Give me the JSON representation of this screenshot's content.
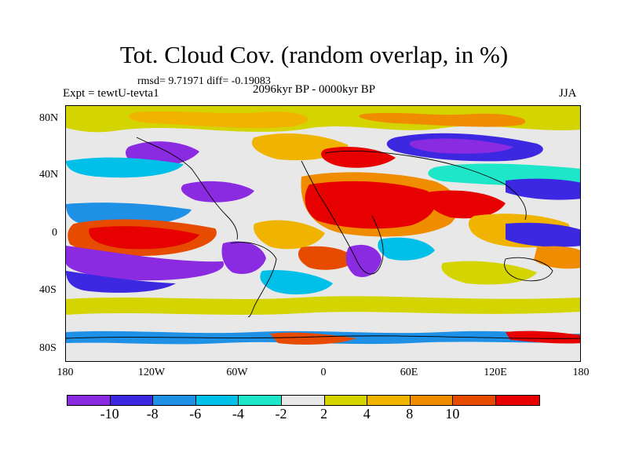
{
  "title": "Tot. Cloud Cov. (random overlap, in %)",
  "stats": "rmsd= 9.71971  diff= -0.19083",
  "experiment": "Expt = tewtU-tevta1",
  "period": "2096kyr BP - 0000kyr BP",
  "season": "JJA",
  "lat_ticks": [
    "80N",
    "40N",
    "0",
    "40S",
    "80S"
  ],
  "lon_ticks": [
    "180",
    "120W",
    "60W",
    "0",
    "60E",
    "120E",
    "180"
  ],
  "colorbar": {
    "labels": [
      "-10",
      "-8",
      "-6",
      "-4",
      "-2",
      "2",
      "4",
      "8",
      "10"
    ],
    "colors": [
      "#8a2be2",
      "#3c28e0",
      "#1e90e6",
      "#00bfe8",
      "#1ee6c8",
      "#e8e8e8",
      "#d4d400",
      "#f0b400",
      "#f08c00",
      "#e64b00",
      "#e60000"
    ]
  }
}
